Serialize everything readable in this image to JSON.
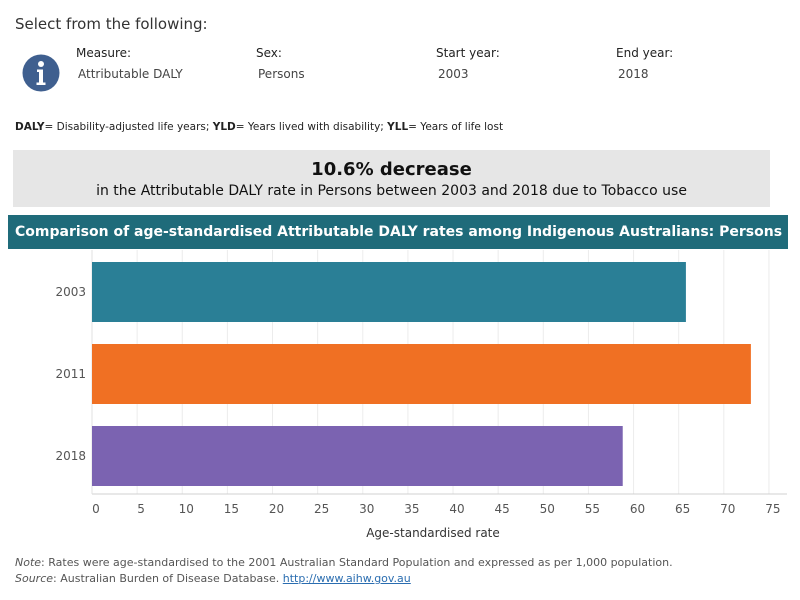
{
  "header": {
    "prompt": "Select from the following:",
    "info_icon": "info-icon"
  },
  "filters": [
    {
      "label": "Measure:",
      "value": "Attributable DALY"
    },
    {
      "label": "Sex:",
      "value": "Persons"
    },
    {
      "label": "Start year:",
      "value": "2003"
    },
    {
      "label": "End year:",
      "value": "2018"
    }
  ],
  "legend_note": [
    {
      "abbr": "DALY",
      "def": "= Disability-adjusted life years; "
    },
    {
      "abbr": "YLD",
      "def": "= Years lived with disability; "
    },
    {
      "abbr": "YLL",
      "def": "= Years of life lost"
    }
  ],
  "summary": {
    "headline": "10.6% decrease",
    "detail": "in the Attributable DALY rate in Persons between 2003 and 2018 due to Tobacco use"
  },
  "chart_data": {
    "type": "bar",
    "orientation": "horizontal",
    "title": "Comparison of age-standardised Attributable DALY rates among Indigenous Australians: Persons",
    "categories": [
      "2003",
      "2011",
      "2018"
    ],
    "values": [
      65.8,
      73.0,
      58.8
    ],
    "colors": [
      "#2a7f96",
      "#f07023",
      "#7b63b1"
    ],
    "xlabel": "Age-standardised rate",
    "ylabel": "",
    "xlim": [
      0,
      77
    ],
    "xticks": [
      0,
      5,
      10,
      15,
      20,
      25,
      30,
      35,
      40,
      45,
      50,
      55,
      60,
      65,
      70,
      75
    ],
    "grid": true
  },
  "footer": {
    "note_label": "Note",
    "note_text": ": Rates were age-standardised to the 2001 Australian Standard Population and expressed as per 1,000 population.",
    "source_label": "Source",
    "source_text": ": Australian Burden of Disease Database. ",
    "source_link": "http://www.aihw.gov.au"
  }
}
